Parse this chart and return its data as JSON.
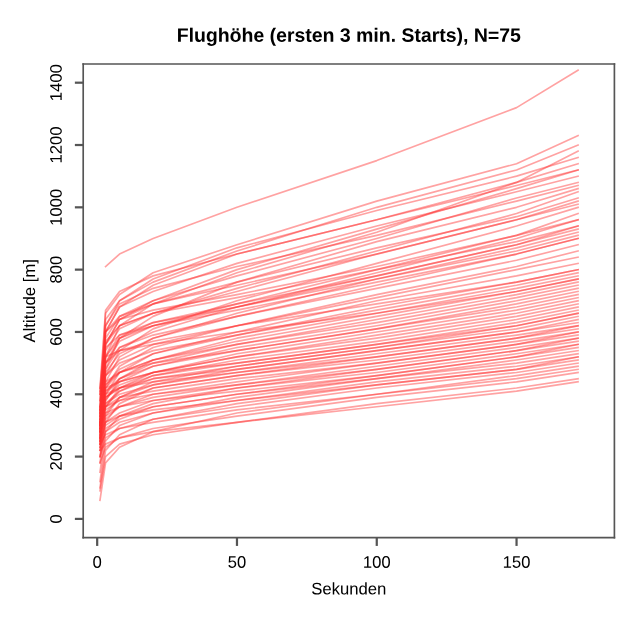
{
  "chart_data": {
    "type": "line",
    "title": "Flughöhe (ersten 3 min. Starts), N=75",
    "xlabel": "Sekunden",
    "ylabel": "Altitude [m]",
    "x": [
      1,
      3,
      8,
      20,
      50,
      100,
      150,
      172
    ],
    "color": "#ff3030",
    "xlim": [
      -5,
      185
    ],
    "ylim": [
      -60,
      1460
    ],
    "xticks": [
      0,
      50,
      100,
      150
    ],
    "yticks": [
      0,
      200,
      400,
      600,
      800,
      1000,
      1200,
      1400
    ],
    "grid": false,
    "legend": false,
    "series": [
      {
        "values": [
          null,
          810,
          850,
          900,
          1000,
          1150,
          1320,
          1440
        ]
      },
      {
        "values": [
          300,
          560,
          640,
          700,
          800,
          930,
          1060,
          1120
        ]
      },
      {
        "values": [
          280,
          520,
          620,
          690,
          790,
          920,
          1080,
          1180
        ]
      },
      {
        "values": [
          320,
          600,
          680,
          730,
          820,
          940,
          1050,
          1100
        ]
      },
      {
        "values": [
          350,
          580,
          650,
          700,
          780,
          900,
          1030,
          1080
        ]
      },
      {
        "values": [
          260,
          480,
          580,
          650,
          760,
          890,
          1000,
          1060
        ]
      },
      {
        "values": [
          300,
          540,
          610,
          660,
          740,
          860,
          980,
          1050
        ]
      },
      {
        "values": [
          330,
          560,
          620,
          660,
          730,
          850,
          960,
          1020
        ]
      },
      {
        "values": [
          250,
          460,
          540,
          610,
          700,
          820,
          940,
          1000
        ]
      },
      {
        "values": [
          310,
          500,
          570,
          620,
          690,
          800,
          910,
          980
        ]
      },
      {
        "values": [
          290,
          480,
          550,
          600,
          680,
          790,
          900,
          960
        ]
      },
      {
        "values": [
          340,
          520,
          580,
          620,
          680,
          780,
          880,
          940
        ]
      },
      {
        "values": [
          270,
          440,
          520,
          580,
          660,
          770,
          870,
          920
        ]
      },
      {
        "values": [
          300,
          470,
          530,
          580,
          650,
          750,
          850,
          900
        ]
      },
      {
        "values": [
          360,
          500,
          550,
          590,
          650,
          740,
          830,
          880
        ]
      },
      {
        "values": [
          280,
          420,
          490,
          550,
          620,
          720,
          810,
          860
        ]
      },
      {
        "values": [
          320,
          460,
          510,
          560,
          620,
          710,
          800,
          840
        ]
      },
      {
        "values": [
          260,
          400,
          470,
          530,
          600,
          700,
          780,
          820
        ]
      },
      {
        "values": [
          300,
          430,
          480,
          530,
          590,
          680,
          760,
          800
        ]
      },
      {
        "values": [
          350,
          460,
          500,
          540,
          590,
          670,
          750,
          790
        ]
      },
      {
        "values": [
          240,
          380,
          450,
          510,
          580,
          660,
          740,
          780
        ]
      },
      {
        "values": [
          310,
          420,
          470,
          510,
          570,
          650,
          730,
          770
        ]
      },
      {
        "values": [
          280,
          400,
          450,
          500,
          560,
          640,
          720,
          760
        ]
      },
      {
        "values": [
          330,
          430,
          470,
          510,
          560,
          630,
          710,
          750
        ]
      },
      {
        "values": [
          260,
          380,
          440,
          490,
          550,
          620,
          700,
          740
        ]
      },
      {
        "values": [
          300,
          410,
          450,
          490,
          540,
          610,
          690,
          730
        ]
      },
      {
        "values": [
          350,
          440,
          470,
          500,
          540,
          610,
          680,
          720
        ]
      },
      {
        "values": [
          220,
          360,
          420,
          470,
          530,
          600,
          670,
          710
        ]
      },
      {
        "values": [
          290,
          390,
          430,
          470,
          520,
          590,
          660,
          700
        ]
      },
      {
        "values": [
          320,
          410,
          440,
          470,
          520,
          580,
          650,
          690
        ]
      },
      {
        "values": [
          250,
          360,
          410,
          460,
          510,
          570,
          640,
          680
        ]
      },
      {
        "values": [
          300,
          390,
          420,
          460,
          500,
          560,
          630,
          670
        ]
      },
      {
        "values": [
          340,
          420,
          440,
          470,
          500,
          560,
          620,
          660
        ]
      },
      {
        "values": [
          200,
          330,
          390,
          440,
          490,
          550,
          620,
          660
        ]
      },
      {
        "values": [
          280,
          370,
          410,
          450,
          490,
          550,
          610,
          650
        ]
      },
      {
        "values": [
          310,
          390,
          420,
          450,
          480,
          540,
          600,
          640
        ]
      },
      {
        "values": [
          240,
          340,
          390,
          430,
          480,
          540,
          600,
          630
        ]
      },
      {
        "values": [
          290,
          370,
          400,
          430,
          470,
          530,
          590,
          620
        ]
      },
      {
        "values": [
          350,
          400,
          420,
          440,
          470,
          520,
          580,
          620
        ]
      },
      {
        "values": [
          180,
          310,
          370,
          420,
          460,
          520,
          580,
          610
        ]
      },
      {
        "values": [
          270,
          350,
          380,
          420,
          460,
          510,
          570,
          600
        ]
      },
      {
        "values": [
          300,
          360,
          390,
          410,
          450,
          500,
          560,
          600
        ]
      },
      {
        "values": [
          220,
          320,
          360,
          400,
          440,
          500,
          560,
          590
        ]
      },
      {
        "values": [
          260,
          330,
          360,
          390,
          430,
          490,
          550,
          580
        ]
      },
      {
        "values": [
          310,
          360,
          380,
          400,
          430,
          480,
          540,
          580
        ]
      },
      {
        "values": [
          150,
          280,
          330,
          370,
          420,
          480,
          540,
          570
        ]
      },
      {
        "values": [
          240,
          310,
          340,
          380,
          420,
          470,
          530,
          560
        ]
      },
      {
        "values": [
          290,
          340,
          360,
          380,
          410,
          460,
          520,
          560
        ]
      },
      {
        "values": [
          200,
          290,
          320,
          360,
          400,
          460,
          520,
          550
        ]
      },
      {
        "values": [
          250,
          300,
          330,
          360,
          400,
          450,
          510,
          540
        ]
      },
      {
        "values": [
          120,
          250,
          300,
          340,
          390,
          450,
          500,
          530
        ]
      },
      {
        "values": [
          230,
          280,
          310,
          340,
          380,
          440,
          490,
          520
        ]
      },
      {
        "values": [
          280,
          310,
          330,
          350,
          380,
          430,
          480,
          520
        ]
      },
      {
        "values": [
          100,
          220,
          270,
          320,
          370,
          430,
          480,
          510
        ]
      },
      {
        "values": [
          200,
          260,
          290,
          320,
          360,
          420,
          470,
          500
        ]
      },
      {
        "values": [
          60,
          180,
          230,
          280,
          340,
          400,
          460,
          490
        ]
      },
      {
        "values": [
          240,
          270,
          290,
          310,
          350,
          400,
          450,
          480
        ]
      },
      {
        "values": [
          180,
          230,
          260,
          290,
          330,
          390,
          440,
          470
        ]
      },
      {
        "values": [
          90,
          200,
          240,
          270,
          310,
          370,
          420,
          450
        ]
      },
      {
        "values": [
          220,
          240,
          260,
          280,
          310,
          360,
          410,
          440
        ]
      },
      {
        "values": [
          380,
          640,
          700,
          760,
          860,
          1000,
          1120,
          1200
        ]
      },
      {
        "values": [
          400,
          660,
          720,
          790,
          880,
          1020,
          1140,
          1230
        ]
      },
      {
        "values": [
          360,
          620,
          700,
          770,
          870,
          990,
          1100,
          1160
        ]
      },
      {
        "values": [
          330,
          600,
          680,
          750,
          850,
          960,
          1080,
          1140
        ]
      },
      {
        "values": [
          420,
          670,
          730,
          780,
          850,
          960,
          1070,
          1120
        ]
      },
      {
        "values": [
          300,
          620,
          690,
          740,
          810,
          910,
          1020,
          1070
        ]
      },
      {
        "values": [
          380,
          600,
          650,
          690,
          750,
          850,
          960,
          1010
        ]
      },
      {
        "values": [
          250,
          560,
          640,
          690,
          760,
          870,
          970,
          1030
        ]
      },
      {
        "values": [
          420,
          600,
          640,
          670,
          720,
          810,
          910,
          960
        ]
      },
      {
        "values": [
          360,
          570,
          620,
          660,
          710,
          800,
          890,
          940
        ]
      },
      {
        "values": [
          230,
          500,
          580,
          630,
          690,
          780,
          880,
          930
        ]
      },
      {
        "values": [
          400,
          550,
          590,
          620,
          670,
          760,
          850,
          900
        ]
      },
      {
        "values": [
          280,
          520,
          590,
          630,
          680,
          770,
          860,
          910
        ]
      },
      {
        "values": [
          340,
          500,
          540,
          570,
          620,
          690,
          760,
          800
        ]
      },
      {
        "values": [
          410,
          520,
          540,
          560,
          600,
          660,
          730,
          770
        ]
      }
    ]
  }
}
